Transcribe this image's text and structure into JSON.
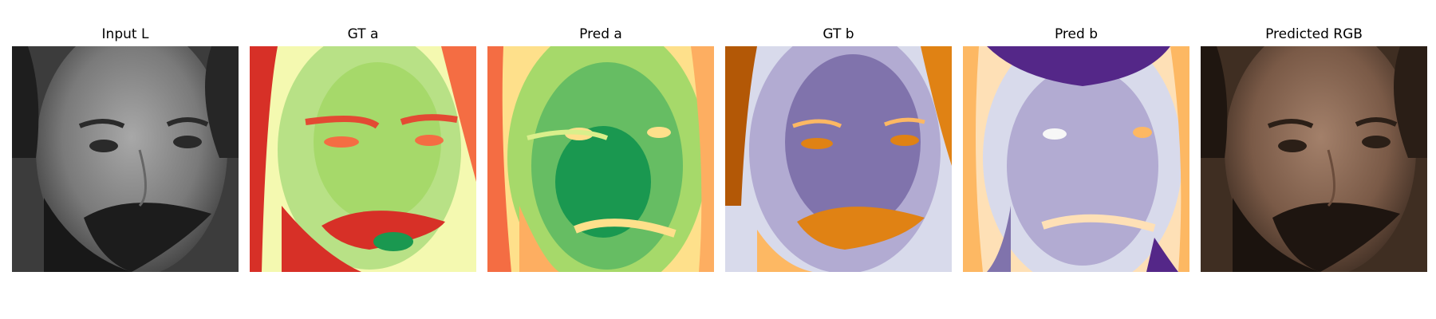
{
  "figure": {
    "panels": [
      {
        "title": "Input L",
        "kind": "grayscale-luminance"
      },
      {
        "title": "GT a",
        "kind": "ground-truth-a-channel",
        "colormap": "red-yellow-green"
      },
      {
        "title": "Pred a",
        "kind": "predicted-a-channel",
        "colormap": "red-yellow-green"
      },
      {
        "title": "GT b",
        "kind": "ground-truth-b-channel",
        "colormap": "orange-white-purple"
      },
      {
        "title": "Pred b",
        "kind": "predicted-b-channel",
        "colormap": "orange-white-purple"
      },
      {
        "title": "Predicted RGB",
        "kind": "colorized-output"
      }
    ]
  },
  "colors": {
    "background": "#ffffff",
    "title_text": "#000000",
    "a_low": "#a50026",
    "a_mid": "#ffffbf",
    "a_high": "#006837",
    "b_low": "#7f3b08",
    "b_mid": "#f7f7f7",
    "b_high": "#2d004b"
  }
}
